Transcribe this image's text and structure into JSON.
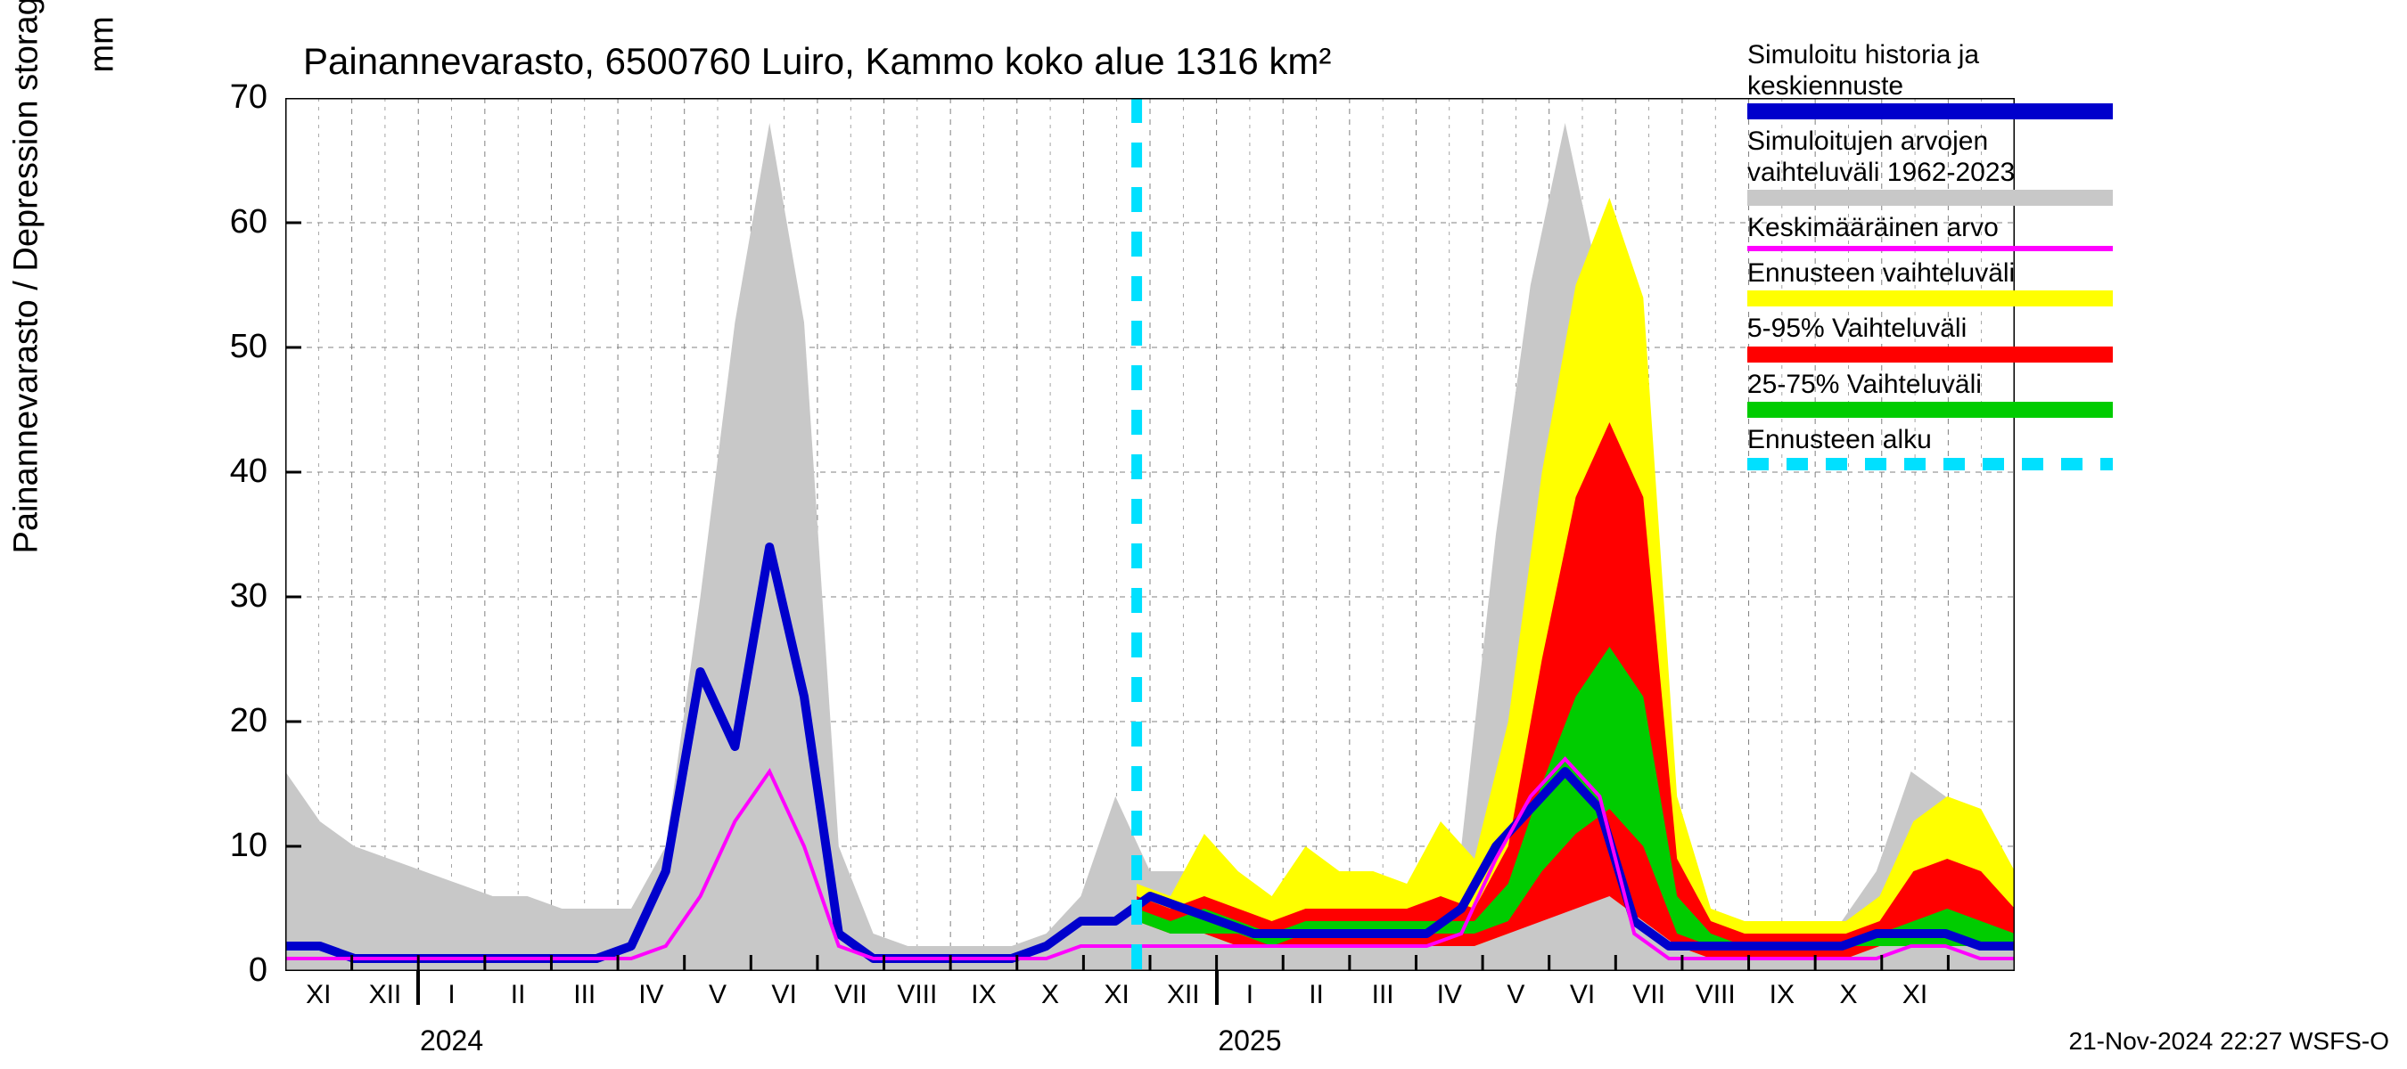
{
  "chart": {
    "title": "Painannevarasto, 6500760 Luiro, Kammo koko alue 1316 km²",
    "y_axis_label": "Painannevarasto / Depression storage",
    "y_unit": "mm",
    "footer": "21-Nov-2024 22:27 WSFS-O",
    "background_color": "#ffffff",
    "grid_color": "#808080",
    "axis_color": "#000000",
    "title_fontsize": 42,
    "label_fontsize": 38,
    "tick_fontsize": 30,
    "ylim": [
      0,
      70
    ],
    "yticks": [
      0,
      10,
      20,
      30,
      40,
      50,
      60,
      70
    ],
    "x_months_count": 26,
    "x_tick_labels": [
      "XI",
      "XII",
      "I",
      "II",
      "III",
      "IV",
      "V",
      "VI",
      "VII",
      "VIII",
      "IX",
      "X",
      "XI",
      "XII",
      "I",
      "II",
      "III",
      "IV",
      "V",
      "VI",
      "VII",
      "VIII",
      "IX",
      "X",
      "XI"
    ],
    "year_labels": [
      {
        "text": "2024",
        "month_index": 2.5
      },
      {
        "text": "2025",
        "month_index": 14.5
      }
    ],
    "year_major_ticks_at": [
      2,
      14
    ],
    "forecast_start_month_index": 12.8,
    "colors": {
      "history_blue": "#0000cc",
      "range_grey": "#c8c8c8",
      "mean_magenta": "#ff00ff",
      "forecast_yellow": "#ffff00",
      "range_red": "#ff0000",
      "range_green": "#00cc00",
      "forecast_cyan": "#00e0ff"
    },
    "series_grey_upper": [
      16,
      12,
      10,
      9,
      8,
      7,
      6,
      6,
      5,
      5,
      5,
      10,
      30,
      52,
      68,
      52,
      10,
      3,
      2,
      2,
      2,
      2,
      3,
      6,
      14,
      8,
      8,
      6,
      5,
      5,
      5,
      5,
      5,
      5,
      10,
      35,
      55,
      68,
      55,
      12,
      4,
      3,
      3,
      3,
      3,
      4,
      8,
      16,
      14,
      10,
      8
    ],
    "series_grey_lower": [
      0,
      0,
      0,
      0,
      0,
      0,
      0,
      0,
      0,
      0,
      0,
      0,
      0,
      0,
      0,
      0,
      0,
      0,
      0,
      0,
      0,
      0,
      0,
      0,
      0,
      0,
      0,
      0,
      0,
      0,
      0,
      0,
      0,
      0,
      0,
      0,
      0,
      0,
      0,
      0,
      0,
      0,
      0,
      0,
      0,
      0,
      0,
      0,
      0,
      0,
      0
    ],
    "series_blue": [
      2,
      2,
      1,
      1,
      1,
      1,
      1,
      1,
      1,
      1,
      2,
      8,
      24,
      18,
      34,
      22,
      3,
      1,
      1,
      1,
      1,
      1,
      2,
      4,
      4,
      6,
      5,
      4,
      3,
      3,
      3,
      3,
      3,
      3,
      5,
      10,
      13,
      16,
      13,
      4,
      2,
      2,
      2,
      2,
      2,
      2,
      3,
      3,
      3,
      2,
      2
    ],
    "series_magenta": [
      1,
      1,
      1,
      1,
      1,
      1,
      1,
      1,
      1,
      1,
      1,
      2,
      6,
      12,
      16,
      10,
      2,
      1,
      1,
      1,
      1,
      1,
      1,
      2,
      2,
      2,
      2,
      2,
      2,
      2,
      2,
      2,
      2,
      2,
      3,
      9,
      14,
      17,
      14,
      3,
      1,
      1,
      1,
      1,
      1,
      1,
      1,
      2,
      2,
      1,
      1
    ],
    "series_yellow_upper": [
      7,
      6,
      11,
      8,
      6,
      10,
      8,
      8,
      7,
      12,
      9,
      20,
      40,
      55,
      62,
      54,
      14,
      5,
      4,
      4,
      4,
      4,
      6,
      12,
      14,
      13,
      8
    ],
    "series_yellow_lower": [
      4,
      3,
      3,
      2,
      2,
      2,
      2,
      2,
      2,
      2,
      2,
      3,
      5,
      7,
      9,
      6,
      2,
      1,
      1,
      1,
      1,
      1,
      2,
      2,
      2,
      2,
      2
    ],
    "series_red_upper": [
      6,
      5,
      6,
      5,
      4,
      5,
      5,
      5,
      5,
      6,
      5,
      10,
      25,
      38,
      44,
      38,
      9,
      4,
      3,
      3,
      3,
      3,
      4,
      8,
      9,
      8,
      5
    ],
    "series_red_lower": [
      4,
      3,
      3,
      2,
      2,
      2,
      2,
      2,
      2,
      2,
      2,
      3,
      4,
      5,
      6,
      4,
      2,
      1,
      1,
      1,
      1,
      1,
      2,
      2,
      2,
      2,
      2
    ],
    "series_green_upper": [
      5,
      4,
      5,
      4,
      3,
      4,
      4,
      4,
      4,
      4,
      4,
      7,
      15,
      22,
      26,
      22,
      6,
      3,
      2,
      2,
      2,
      2,
      3,
      4,
      5,
      4,
      3
    ],
    "series_green_lower": [
      4,
      3,
      3,
      3,
      2,
      3,
      3,
      3,
      3,
      3,
      3,
      4,
      8,
      11,
      13,
      10,
      3,
      2,
      2,
      2,
      2,
      2,
      2,
      2,
      2,
      2,
      2
    ]
  },
  "legend": {
    "items": [
      {
        "label_line1": "Simuloitu historia ja",
        "label_line2": "keskiennuste",
        "swatch_color": "#0000cc",
        "type": "solid"
      },
      {
        "label_line1": "Simuloitujen arvojen",
        "label_line2": "vaihteluväli 1962-2023",
        "swatch_color": "#c8c8c8",
        "type": "solid"
      },
      {
        "label_line1": "Keskimääräinen arvo",
        "label_line2": "",
        "swatch_color": "#ff00ff",
        "type": "line"
      },
      {
        "label_line1": "Ennusteen vaihteluväli",
        "label_line2": "",
        "swatch_color": "#ffff00",
        "type": "solid"
      },
      {
        "label_line1": "5-95% Vaihteluväli",
        "label_line2": "",
        "swatch_color": "#ff0000",
        "type": "solid"
      },
      {
        "label_line1": "25-75% Vaihteluväli",
        "label_line2": "",
        "swatch_color": "#00cc00",
        "type": "solid"
      },
      {
        "label_line1": "Ennusteen alku",
        "label_line2": "",
        "swatch_color": "#00e0ff",
        "type": "dashed"
      }
    ]
  }
}
